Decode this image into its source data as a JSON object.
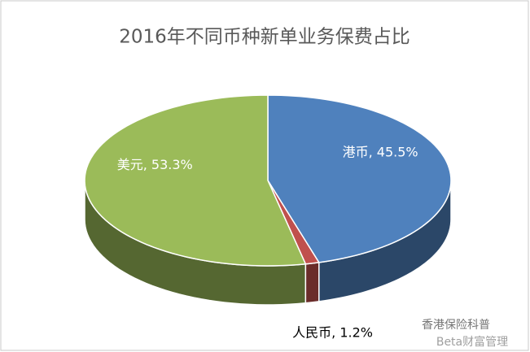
{
  "chart_data": {
    "type": "pie",
    "title": "2016年不同币种新单业务保费占比",
    "values": [
      45.5,
      1.2,
      53.3
    ],
    "value_labels": [
      "港币, 45.5%",
      "人民币, 1.2%",
      "美元, 53.3%"
    ],
    "colors": [
      "#4f81bd",
      "#c0504d",
      "#9bbb59"
    ]
  },
  "watermark": [
    "香港保险科普",
    "Beta财富管理"
  ]
}
